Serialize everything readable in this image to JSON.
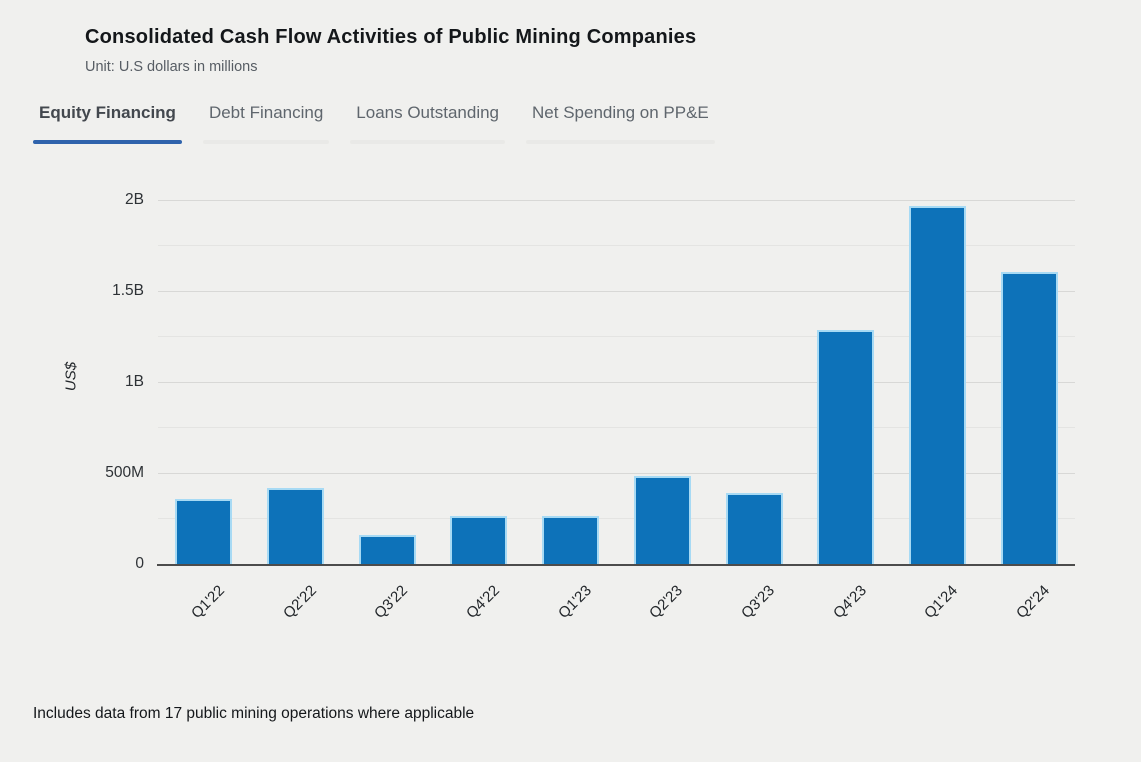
{
  "header": {
    "title": "Consolidated Cash Flow Activities of Public Mining Companies",
    "subtitle": "Unit: U.S dollars in millions"
  },
  "tabs": {
    "items": [
      {
        "label": "Equity Financing",
        "active": true
      },
      {
        "label": "Debt Financing",
        "active": false
      },
      {
        "label": "Loans Outstanding",
        "active": false
      },
      {
        "label": "Net Spending on PP&E",
        "active": false
      }
    ]
  },
  "chart_data": {
    "type": "bar",
    "title": "Consolidated Cash Flow Activities of Public Mining Companies — Equity Financing",
    "series_name": "Equity Financing",
    "unit": "USD millions",
    "categories": [
      "Q1'22",
      "Q2'22",
      "Q3'22",
      "Q4'22",
      "Q1'23",
      "Q2'23",
      "Q3'23",
      "Q4'23",
      "Q1'24",
      "Q2'24"
    ],
    "values": [
      355,
      415,
      160,
      265,
      265,
      485,
      390,
      1285,
      1965,
      1600
    ],
    "xlabel": "",
    "ylabel": "US$",
    "ylim": [
      0,
      2000
    ],
    "grid": "horizontal",
    "legend": "none",
    "y_ticks": [
      {
        "m": 0,
        "label": "0"
      },
      {
        "m": 500,
        "label": "500M"
      },
      {
        "m": 1000,
        "label": "1B"
      },
      {
        "m": 1500,
        "label": "1.5B"
      },
      {
        "m": 2000,
        "label": "2B"
      }
    ],
    "y_major_gridlines_m": [
      500,
      1000,
      1500,
      2000
    ],
    "y_minor_gridlines_m": [
      250,
      750,
      1250,
      1750
    ]
  },
  "footer": {
    "note": "Includes data from 17 public mining operations where applicable"
  },
  "colors": {
    "background": "#f0f0ee",
    "bar_fill": "#0d72b9",
    "bar_stroke": "#a7daf4",
    "active_tab_underline": "#2f63ac",
    "inactive_tab_underline": "#e9e9e7",
    "axis_line": "#4c4c4c",
    "grid_major": "#d8d8d6",
    "grid_minor": "#e4e4e2"
  }
}
